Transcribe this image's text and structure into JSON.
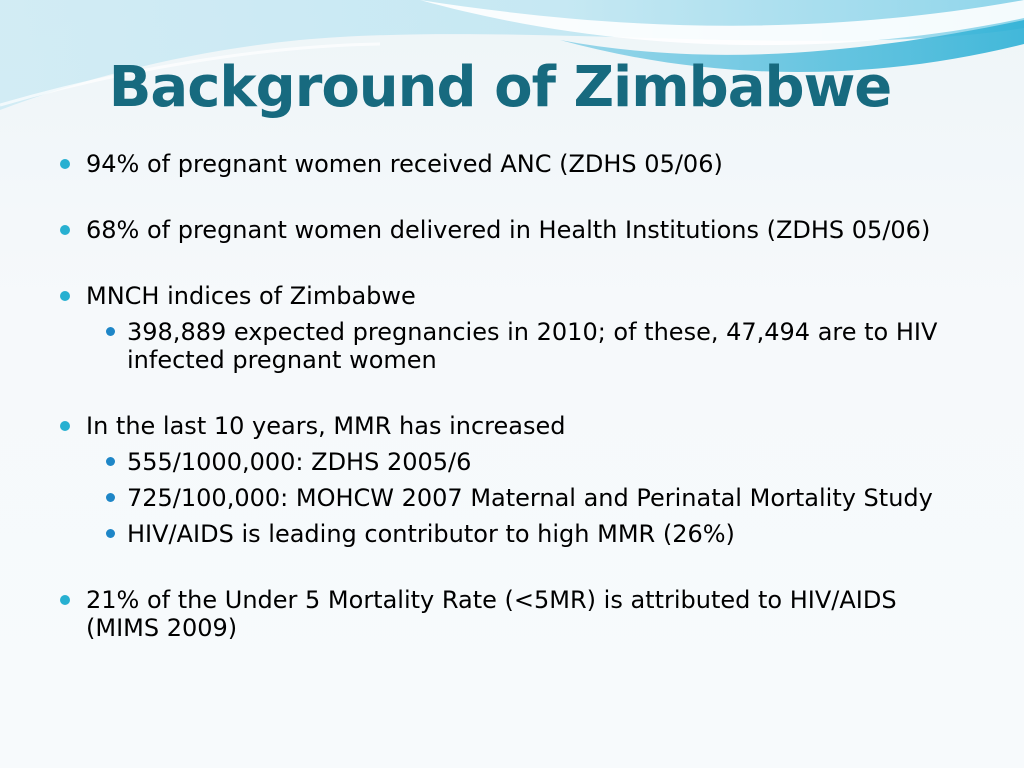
{
  "slide": {
    "title": "Background of Zimbabwe",
    "bullets": [
      {
        "text": "94% of pregnant women received ANC (ZDHS 05/06)",
        "sub": []
      },
      {
        "text": "68% of pregnant women delivered in Health Institutions (ZDHS 05/06)",
        "sub": []
      },
      {
        "text": "MNCH indices of Zimbabwe",
        "sub": [
          "398,889 expected pregnancies in 2010; of these, 47,494 are to HIV infected pregnant women"
        ]
      },
      {
        "text": "In the last 10 years, MMR has increased",
        "sub": [
          "555/1000,000: ZDHS 2005/6",
          "725/100,000: MOHCW 2007 Maternal and Perinatal Mortality Study",
          "HIV/AIDS is leading contributor to high MMR (26%)"
        ]
      },
      {
        "text": "21% of the Under 5 Mortality Rate (<5MR) is attributed to HIV/AIDS (MIMS 2009)",
        "sub": []
      }
    ]
  },
  "colors": {
    "title": "#176a7f",
    "bullet_primary": "#27b0d1",
    "bullet_secondary": "#1e86c7",
    "swoosh_light": "#bfe6f2",
    "swoosh_dark": "#36b7d8"
  }
}
